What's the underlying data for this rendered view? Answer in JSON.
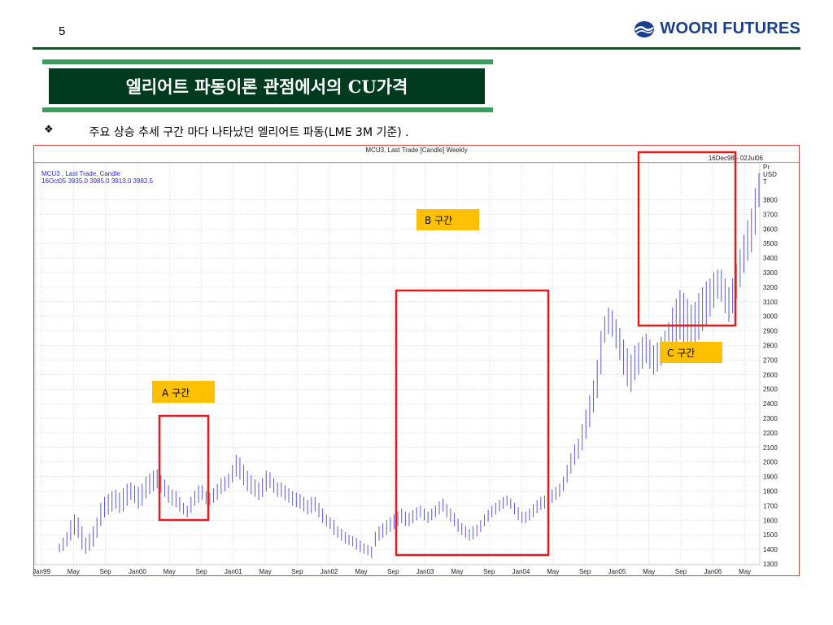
{
  "page": {
    "number": "5"
  },
  "logo": {
    "text": "WOORI FUTURES",
    "color": "#1b3f8f"
  },
  "title": {
    "text": "엘리어트 파동이론 관점에서의 CU가격"
  },
  "bullet": {
    "glyph": "❖",
    "text": "주요 상승 추세 구간 마다 나타났던 엘리어트 파동(LME 3M 기준) ."
  },
  "chart_data": {
    "type": "candlestick",
    "title": "MCU3, Last Trade [Candle] Weekly",
    "legend_line1": "MCU3 , Last Trade, Candle",
    "legend_line2": "16Oct05 3935.0 3985.0 3913.0 3982.5",
    "date_range": "16Dec98 - 02Jul06",
    "y_unit_label": [
      "Pr",
      "USD",
      "T"
    ],
    "ylim": [
      1300,
      3900
    ],
    "y_ticks": [
      1300,
      1400,
      1500,
      1600,
      1700,
      1800,
      1900,
      2000,
      2100,
      2200,
      2300,
      2400,
      2500,
      2600,
      2700,
      2800,
      2900,
      3000,
      3100,
      3200,
      3300,
      3400,
      3500,
      3600,
      3700,
      3800
    ],
    "x_ticks": [
      "Jan99",
      "May",
      "Sep",
      "Jan00",
      "May",
      "Sep",
      "Jan01",
      "May",
      "Sep",
      "Jan02",
      "May",
      "Sep",
      "Jan03",
      "May",
      "Sep",
      "Jan04",
      "May",
      "Sep",
      "Jan05",
      "May",
      "Sep",
      "Jan06",
      "May"
    ],
    "candles_per_tick": 17,
    "candles": [
      [
        1380,
        1440
      ],
      [
        1390,
        1480
      ],
      [
        1420,
        1520
      ],
      [
        1460,
        1600
      ],
      [
        1500,
        1640
      ],
      [
        1480,
        1620
      ],
      [
        1400,
        1560
      ],
      [
        1370,
        1480
      ],
      [
        1390,
        1510
      ],
      [
        1420,
        1560
      ],
      [
        1480,
        1620
      ],
      [
        1560,
        1720
      ],
      [
        1620,
        1760
      ],
      [
        1640,
        1780
      ],
      [
        1660,
        1800
      ],
      [
        1680,
        1810
      ],
      [
        1650,
        1790
      ],
      [
        1660,
        1820
      ],
      [
        1700,
        1850
      ],
      [
        1740,
        1860
      ],
      [
        1720,
        1840
      ],
      [
        1680,
        1830
      ],
      [
        1700,
        1850
      ],
      [
        1750,
        1900
      ],
      [
        1780,
        1920
      ],
      [
        1800,
        1940
      ],
      [
        1820,
        1950
      ],
      [
        1790,
        1910
      ],
      [
        1760,
        1880
      ],
      [
        1720,
        1840
      ],
      [
        1700,
        1810
      ],
      [
        1690,
        1800
      ],
      [
        1660,
        1760
      ],
      [
        1640,
        1720
      ],
      [
        1620,
        1700
      ],
      [
        1650,
        1760
      ],
      [
        1700,
        1800
      ],
      [
        1720,
        1840
      ],
      [
        1740,
        1840
      ],
      [
        1710,
        1800
      ],
      [
        1700,
        1790
      ],
      [
        1720,
        1820
      ],
      [
        1740,
        1850
      ],
      [
        1780,
        1890
      ],
      [
        1800,
        1900
      ],
      [
        1820,
        1920
      ],
      [
        1860,
        1980
      ],
      [
        1900,
        2050
      ],
      [
        1880,
        2030
      ],
      [
        1840,
        1980
      ],
      [
        1800,
        1940
      ],
      [
        1780,
        1910
      ],
      [
        1760,
        1880
      ],
      [
        1740,
        1860
      ],
      [
        1760,
        1890
      ],
      [
        1800,
        1940
      ],
      [
        1820,
        1930
      ],
      [
        1790,
        1890
      ],
      [
        1760,
        1860
      ],
      [
        1760,
        1860
      ],
      [
        1740,
        1840
      ],
      [
        1720,
        1820
      ],
      [
        1700,
        1800
      ],
      [
        1690,
        1790
      ],
      [
        1680,
        1780
      ],
      [
        1660,
        1760
      ],
      [
        1640,
        1740
      ],
      [
        1650,
        1760
      ],
      [
        1660,
        1760
      ],
      [
        1620,
        1720
      ],
      [
        1580,
        1680
      ],
      [
        1560,
        1640
      ],
      [
        1540,
        1620
      ],
      [
        1500,
        1600
      ],
      [
        1480,
        1560
      ],
      [
        1460,
        1540
      ],
      [
        1440,
        1520
      ],
      [
        1430,
        1500
      ],
      [
        1420,
        1490
      ],
      [
        1400,
        1480
      ],
      [
        1380,
        1460
      ],
      [
        1370,
        1440
      ],
      [
        1360,
        1430
      ],
      [
        1340,
        1420
      ],
      [
        1420,
        1520
      ],
      [
        1460,
        1560
      ],
      [
        1480,
        1580
      ],
      [
        1500,
        1600
      ],
      [
        1520,
        1620
      ],
      [
        1540,
        1640
      ],
      [
        1560,
        1660
      ],
      [
        1580,
        1680
      ],
      [
        1560,
        1660
      ],
      [
        1560,
        1650
      ],
      [
        1580,
        1670
      ],
      [
        1600,
        1690
      ],
      [
        1620,
        1700
      ],
      [
        1600,
        1680
      ],
      [
        1580,
        1660
      ],
      [
        1600,
        1680
      ],
      [
        1620,
        1700
      ],
      [
        1640,
        1730
      ],
      [
        1660,
        1750
      ],
      [
        1620,
        1710
      ],
      [
        1590,
        1680
      ],
      [
        1560,
        1650
      ],
      [
        1520,
        1610
      ],
      [
        1500,
        1580
      ],
      [
        1480,
        1560
      ],
      [
        1460,
        1540
      ],
      [
        1470,
        1560
      ],
      [
        1490,
        1570
      ],
      [
        1520,
        1600
      ],
      [
        1560,
        1640
      ],
      [
        1590,
        1670
      ],
      [
        1620,
        1700
      ],
      [
        1640,
        1720
      ],
      [
        1660,
        1740
      ],
      [
        1680,
        1760
      ],
      [
        1700,
        1770
      ],
      [
        1680,
        1750
      ],
      [
        1640,
        1720
      ],
      [
        1600,
        1690
      ],
      [
        1580,
        1660
      ],
      [
        1580,
        1660
      ],
      [
        1600,
        1680
      ],
      [
        1620,
        1710
      ],
      [
        1650,
        1740
      ],
      [
        1670,
        1760
      ],
      [
        1680,
        1770
      ],
      [
        1700,
        1790
      ],
      [
        1720,
        1810
      ],
      [
        1740,
        1830
      ],
      [
        1760,
        1850
      ],
      [
        1800,
        1900
      ],
      [
        1860,
        1980
      ],
      [
        1920,
        2060
      ],
      [
        1980,
        2120
      ],
      [
        2020,
        2160
      ],
      [
        2080,
        2260
      ],
      [
        2160,
        2360
      ],
      [
        2240,
        2460
      ],
      [
        2340,
        2560
      ],
      [
        2440,
        2700
      ],
      [
        2600,
        2900
      ],
      [
        2820,
        3000
      ],
      [
        2880,
        3060
      ],
      [
        2860,
        3040
      ],
      [
        2780,
        2980
      ],
      [
        2700,
        2920
      ],
      [
        2600,
        2840
      ],
      [
        2520,
        2780
      ],
      [
        2480,
        2740
      ],
      [
        2560,
        2800
      ],
      [
        2600,
        2820
      ],
      [
        2640,
        2860
      ],
      [
        2680,
        2880
      ],
      [
        2640,
        2840
      ],
      [
        2600,
        2800
      ],
      [
        2620,
        2820
      ],
      [
        2660,
        2860
      ],
      [
        2700,
        2900
      ],
      [
        2720,
        2960
      ],
      [
        2760,
        3060
      ],
      [
        2800,
        3120
      ],
      [
        2840,
        3180
      ],
      [
        2820,
        3160
      ],
      [
        2780,
        3120
      ],
      [
        2760,
        3080
      ],
      [
        2780,
        3100
      ],
      [
        2840,
        3160
      ],
      [
        2900,
        3200
      ],
      [
        2940,
        3240
      ],
      [
        3000,
        3260
      ],
      [
        3060,
        3300
      ],
      [
        3120,
        3320
      ],
      [
        3100,
        3320
      ],
      [
        3020,
        3260
      ],
      [
        2960,
        3200
      ],
      [
        3020,
        3260
      ],
      [
        3120,
        3360
      ],
      [
        3200,
        3460
      ],
      [
        3300,
        3560
      ],
      [
        3380,
        3660
      ],
      [
        3440,
        3740
      ],
      [
        3560,
        3880
      ],
      [
        3750,
        3985
      ]
    ]
  },
  "annotations": [
    {
      "label": "A 구간"
    },
    {
      "label": "B 구간"
    },
    {
      "label": "C 구간"
    }
  ],
  "colors": {
    "candle": "#5a5ad6",
    "highlight_box": "#e31b1b",
    "label_bg": "#ffc000",
    "frame": "#d9463b",
    "title_bg": "#003a1f",
    "band": "#3f9c5f"
  }
}
